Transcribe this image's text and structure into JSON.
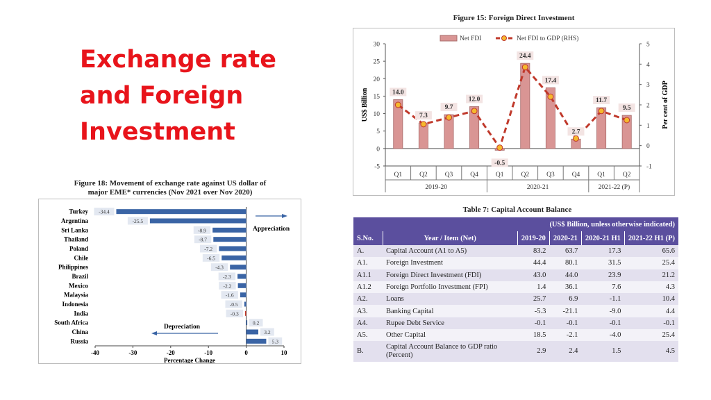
{
  "slide": {
    "title_lines": [
      "Exchange rate",
      "and Foreign",
      "Investment"
    ]
  },
  "fig15": {
    "caption": "Figure 15: Foreign Direct Investment",
    "chart_data": {
      "type": "bar",
      "title": "Figure 15: Foreign Direct Investment",
      "categories": [
        "Q1",
        "Q2",
        "Q3",
        "Q4",
        "Q1",
        "Q2",
        "Q3",
        "Q4",
        "Q1",
        "Q2"
      ],
      "groups": [
        {
          "label": "2019-20",
          "span": 4
        },
        {
          "label": "2020-21",
          "span": 4
        },
        {
          "label": "2021-22 (P)",
          "span": 2
        }
      ],
      "series": [
        {
          "name": "Net FDI",
          "axis": "left",
          "type": "bar",
          "values": [
            14.0,
            7.3,
            9.7,
            12.0,
            -0.5,
            24.4,
            17.4,
            2.7,
            11.7,
            9.5
          ],
          "color": "#d99594"
        },
        {
          "name": "Net FDI to GDP (RHS)",
          "axis": "right",
          "type": "line",
          "values": [
            2.0,
            1.05,
            1.38,
            1.7,
            -0.1,
            3.85,
            2.4,
            0.35,
            1.7,
            1.25
          ],
          "color": "#c0392b"
        }
      ],
      "ylabel": "US$ Billion",
      "y2label": "Per cent of GDP",
      "ylim": [
        -5,
        30
      ],
      "y2lim": [
        -1,
        5
      ],
      "yticks": [
        "30",
        "25",
        "20",
        "15",
        "10",
        "5",
        "0",
        "-5"
      ],
      "y2ticks": [
        "5",
        "4",
        "3",
        "2",
        "1",
        "0",
        "-1"
      ],
      "value_labels": [
        "14.0",
        "7.3",
        "9.7",
        "12.0",
        "-0.5",
        "24.4",
        "17.4",
        "2.7",
        "11.7",
        "9.5"
      ],
      "legend_position": "top-center"
    }
  },
  "fig18": {
    "caption_line1": "Figure 18: Movement of exchange rate against US dollar of",
    "caption_line2": "major EME* currencies  (Nov 2021 over Nov 2020)",
    "chart_data": {
      "type": "bar",
      "orientation": "horizontal",
      "categories": [
        "Turkey",
        "Argentina",
        "Sri Lanka",
        "Thailand",
        "Poland",
        "Chile",
        "Philippines",
        "Brazil",
        "Mexico",
        "Malaysia",
        "Indonesia",
        "India",
        "South Africa",
        "China",
        "Russia"
      ],
      "values": [
        -34.4,
        -25.5,
        -8.9,
        -8.7,
        -7.2,
        -6.5,
        -4.3,
        -2.3,
        -2.2,
        -1.6,
        -0.5,
        -0.3,
        0.2,
        3.2,
        5.3
      ],
      "value_labels": [
        "-34.4",
        "-25.5",
        "-8.9",
        "-8.7",
        "-7.2",
        "-6.5",
        "-4.3",
        "-2.3",
        "-2.2",
        "-1.6",
        "-0.5",
        "-0.3",
        "0.2",
        "3.2",
        "5.3"
      ],
      "highlight": "India",
      "xlim": [
        -40,
        10
      ],
      "xticks": [
        "-40",
        "-30",
        "-20",
        "-10",
        "0",
        "10"
      ],
      "xlabel": "Percentage Change",
      "annotations": {
        "appreciation": "Appreciation",
        "depreciation": "Depreciation"
      },
      "colors": {
        "bar": "#3a64a5",
        "highlight": "#c0392b"
      }
    }
  },
  "table7": {
    "caption": "Table 7: Capital Account Balance",
    "unit_note": "(US$ Billion, unless otherwise indicated)",
    "headers": [
      "S.No.",
      "Year / Item (Net)",
      "2019-20",
      "2020-21",
      "2020-21 H1",
      "2021-22 H1 (P)"
    ],
    "rows": [
      [
        "A.",
        "Capital Account (A1 to A5)",
        "83.2",
        "63.7",
        "17.3",
        "65.6"
      ],
      [
        "A1.",
        "Foreign Investment",
        "44.4",
        "80.1",
        "31.5",
        "25.4"
      ],
      [
        "A1.1",
        "Foreign Direct Investment (FDI)",
        "43.0",
        "44.0",
        "23.9",
        "21.2"
      ],
      [
        "A1.2",
        "Foreign Portfolio Investment (FPI)",
        "1.4",
        "36.1",
        "7.6",
        "4.3"
      ],
      [
        "A2.",
        "Loans",
        "25.7",
        "6.9",
        "-1.1",
        "10.4"
      ],
      [
        "A3.",
        "Banking Capital",
        "-5.3",
        "-21.1",
        "-9.0",
        "4.4"
      ],
      [
        "A4.",
        "Rupee Debt Service",
        "-0.1",
        "-0.1",
        "-0.1",
        "-0.1"
      ],
      [
        "A5.",
        "Other Capital",
        "18.5",
        "-2.1",
        "-4.0",
        "25.4"
      ],
      [
        "B.",
        "Capital Account Balance to GDP ratio (Percent)",
        "2.9",
        "2.4",
        "1.5",
        "4.5"
      ]
    ]
  }
}
